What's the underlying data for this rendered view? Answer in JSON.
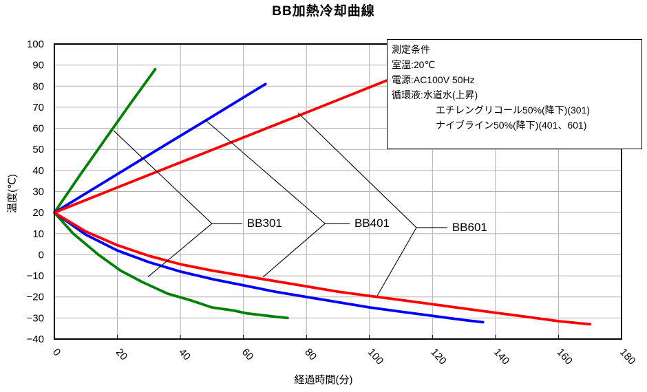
{
  "chart_data": {
    "type": "line",
    "title": "BB加熱冷却曲線",
    "xlabel": "経過時間(分)",
    "ylabel": "温度(℃)",
    "xlim": [
      0,
      180
    ],
    "xtick_step": 20,
    "ylim": [
      -40,
      100
    ],
    "ytick_step": 10,
    "grid": true,
    "grid_color": "#b0b0b0",
    "legend_position": "none",
    "series": [
      {
        "name": "BB301-heating",
        "color": "#008000",
        "points": [
          [
            0,
            20
          ],
          [
            8,
            37.5
          ],
          [
            16,
            54.5
          ],
          [
            24,
            71.5
          ],
          [
            32,
            88
          ]
        ]
      },
      {
        "name": "BB401-heating",
        "color": "#0000ff",
        "points": [
          [
            0,
            20
          ],
          [
            17,
            35.5
          ],
          [
            34,
            51
          ],
          [
            50,
            65.5
          ],
          [
            67,
            81
          ]
        ]
      },
      {
        "name": "BB601-heating",
        "color": "#ff0000",
        "points": [
          [
            0,
            20
          ],
          [
            26,
            35.5
          ],
          [
            53,
            51.5
          ],
          [
            80,
            67.5
          ],
          [
            106,
            83
          ]
        ]
      },
      {
        "name": "BB301-cooling",
        "color": "#008000",
        "points": [
          [
            0,
            20
          ],
          [
            6,
            10
          ],
          [
            14,
            0
          ],
          [
            21,
            -7.5
          ],
          [
            28,
            -13
          ],
          [
            36,
            -18.5
          ],
          [
            43,
            -21.5
          ],
          [
            50,
            -25
          ],
          [
            57,
            -26.5
          ],
          [
            61,
            -27.8
          ],
          [
            65,
            -28.5
          ],
          [
            70,
            -29.4
          ],
          [
            74,
            -30
          ]
        ]
      },
      {
        "name": "BB601-cooling",
        "color": "#0000ff",
        "points": [
          [
            0,
            20
          ],
          [
            10,
            9.5
          ],
          [
            20,
            2
          ],
          [
            30,
            -3.5
          ],
          [
            40,
            -8
          ],
          [
            50,
            -11.5
          ],
          [
            60,
            -14.5
          ],
          [
            70,
            -17.5
          ],
          [
            80,
            -20
          ],
          [
            90,
            -22.5
          ],
          [
            100,
            -25
          ],
          [
            110,
            -27
          ],
          [
            120,
            -29
          ],
          [
            130,
            -31
          ],
          [
            136,
            -32
          ]
        ]
      },
      {
        "name": "BB401-cooling",
        "color": "#ff0000",
        "points": [
          [
            0,
            20
          ],
          [
            10,
            11
          ],
          [
            20,
            4.5
          ],
          [
            30,
            -0.5
          ],
          [
            40,
            -4.5
          ],
          [
            50,
            -7.5
          ],
          [
            60,
            -10
          ],
          [
            70,
            -12.5
          ],
          [
            80,
            -15
          ],
          [
            90,
            -17.5
          ],
          [
            100,
            -19.5
          ],
          [
            110,
            -21.5
          ],
          [
            120,
            -23.5
          ],
          [
            130,
            -25.5
          ],
          [
            140,
            -27.5
          ],
          [
            150,
            -29.5
          ],
          [
            160,
            -31.5
          ],
          [
            170,
            -33
          ]
        ]
      }
    ],
    "annotations": [
      {
        "label": "BB301",
        "touch_rise": [
          18.8,
          58.9
        ],
        "touch_fall": [
          29.7,
          -10.5
        ],
        "vertex": [
          50.0,
          14.8
        ],
        "lead_end": [
          59.6,
          14.8
        ]
      },
      {
        "label": "BB401",
        "touch_rise": [
          47.8,
          64.1
        ],
        "touch_fall": [
          66.2,
          -10.6
        ],
        "vertex": [
          85.9,
          14.8
        ],
        "lead_end": [
          93.7,
          14.8
        ]
      },
      {
        "label": "BB601",
        "touch_rise": [
          77.3,
          67.4
        ],
        "touch_fall": [
          102.5,
          -19.4
        ],
        "vertex": [
          114.9,
          12.9
        ],
        "lead_end": [
          124.7,
          12.9
        ]
      }
    ],
    "conditions_box": {
      "lines": [
        "測定条件",
        "室温:20℃",
        "電源:AC100V 50Hz",
        "循環液:水道水(上昇)",
        "エチレングリコール50%(降下)(301)",
        "ナイブライン50%(降下)(401、601)"
      ]
    }
  }
}
